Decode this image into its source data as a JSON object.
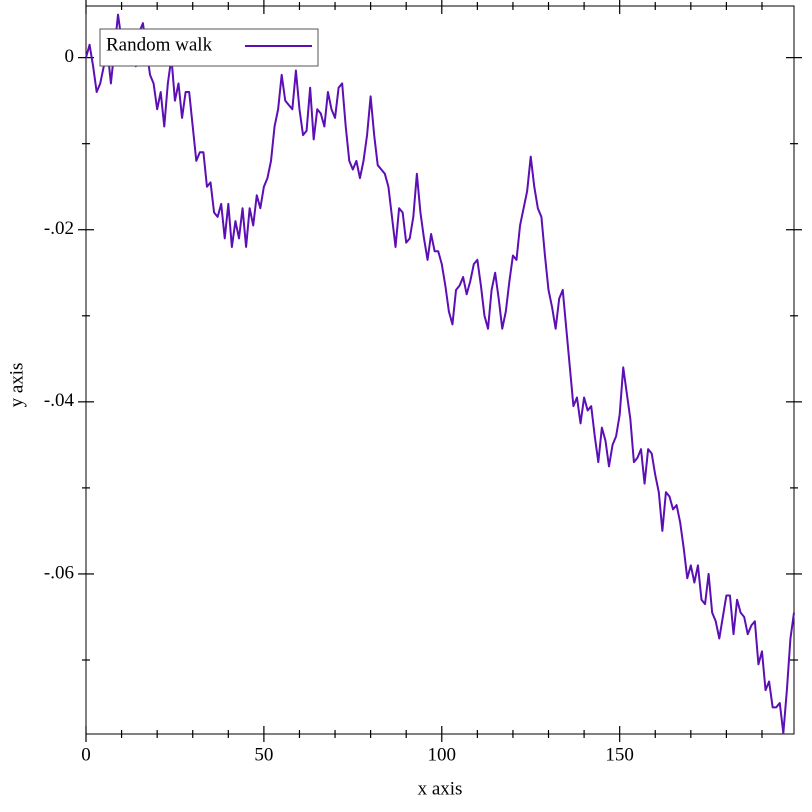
{
  "chart_data": {
    "type": "line",
    "xlabel": "x axis",
    "ylabel": "y axis",
    "x": [
      0,
      1,
      2,
      3,
      4,
      5,
      6,
      7,
      8,
      9,
      10,
      11,
      12,
      13,
      14,
      15,
      16,
      17,
      18,
      19,
      20,
      21,
      22,
      23,
      24,
      25,
      26,
      27,
      28,
      29,
      30,
      31,
      32,
      33,
      34,
      35,
      36,
      37,
      38,
      39,
      40,
      41,
      42,
      43,
      44,
      45,
      46,
      47,
      48,
      49,
      50,
      51,
      52,
      53,
      54,
      55,
      56,
      57,
      58,
      59,
      60,
      61,
      62,
      63,
      64,
      65,
      66,
      67,
      68,
      69,
      70,
      71,
      72,
      73,
      74,
      75,
      76,
      77,
      78,
      79,
      80,
      81,
      82,
      83,
      84,
      85,
      86,
      87,
      88,
      89,
      90,
      91,
      92,
      93,
      94,
      95,
      96,
      97,
      98,
      99,
      100,
      101,
      102,
      103,
      104,
      105,
      106,
      107,
      108,
      109,
      110,
      111,
      112,
      113,
      114,
      115,
      116,
      117,
      118,
      119,
      120,
      121,
      122,
      123,
      124,
      125,
      126,
      127,
      128,
      129,
      130,
      131,
      132,
      133,
      134,
      135,
      136,
      137,
      138,
      139,
      140,
      141,
      142,
      143,
      144,
      145,
      146,
      147,
      148,
      149,
      150,
      151,
      152,
      153,
      154,
      155,
      156,
      157,
      158,
      159,
      160,
      161,
      162,
      163,
      164,
      165,
      166,
      167,
      168,
      169,
      170,
      171,
      172,
      173,
      174,
      175,
      176,
      177,
      178,
      179,
      180,
      181,
      182,
      183,
      184,
      185,
      186,
      187,
      188,
      189,
      190,
      191,
      192,
      193,
      194,
      195,
      196,
      197,
      198,
      199
    ],
    "series": [
      {
        "name": "Random walk",
        "color": "#5c0fb4",
        "values": [
          0,
          0.0015,
          -0.001,
          -0.004,
          -0.003,
          -0.001,
          0.001,
          -0.003,
          0.001,
          0.005,
          0.002,
          0.001,
          0.003,
          0.001,
          -0.001,
          0.003,
          0.004,
          0.001,
          -0.002,
          -0.003,
          -0.006,
          -0.004,
          -0.008,
          -0.003,
          0.0,
          -0.005,
          -0.003,
          -0.007,
          -0.004,
          -0.004,
          -0.008,
          -0.012,
          -0.011,
          -0.011,
          -0.015,
          -0.0145,
          -0.018,
          -0.0185,
          -0.017,
          -0.021,
          -0.017,
          -0.022,
          -0.019,
          -0.021,
          -0.0175,
          -0.022,
          -0.0175,
          -0.0195,
          -0.016,
          -0.0175,
          -0.015,
          -0.014,
          -0.012,
          -0.008,
          -0.006,
          -0.002,
          -0.005,
          -0.0055,
          -0.006,
          -0.0015,
          -0.006,
          -0.009,
          -0.0085,
          -0.0035,
          -0.0095,
          -0.006,
          -0.0065,
          -0.008,
          -0.004,
          -0.006,
          -0.007,
          -0.0035,
          -0.003,
          -0.008,
          -0.012,
          -0.013,
          -0.012,
          -0.014,
          -0.012,
          -0.009,
          -0.0045,
          -0.009,
          -0.0125,
          -0.013,
          -0.0135,
          -0.015,
          -0.0185,
          -0.022,
          -0.0175,
          -0.018,
          -0.0215,
          -0.021,
          -0.0185,
          -0.0135,
          -0.018,
          -0.021,
          -0.0235,
          -0.0205,
          -0.0225,
          -0.0225,
          -0.024,
          -0.0265,
          -0.0295,
          -0.031,
          -0.027,
          -0.0265,
          -0.0255,
          -0.0275,
          -0.026,
          -0.024,
          -0.0235,
          -0.0265,
          -0.03,
          -0.0315,
          -0.027,
          -0.025,
          -0.028,
          -0.0315,
          -0.0295,
          -0.026,
          -0.023,
          -0.0235,
          -0.0195,
          -0.0175,
          -0.0155,
          -0.0115,
          -0.015,
          -0.0175,
          -0.0185,
          -0.023,
          -0.027,
          -0.029,
          -0.0315,
          -0.028,
          -0.027,
          -0.0315,
          -0.036,
          -0.0405,
          -0.0395,
          -0.0425,
          -0.0395,
          -0.041,
          -0.0405,
          -0.044,
          -0.047,
          -0.043,
          -0.0445,
          -0.0475,
          -0.045,
          -0.044,
          -0.0415,
          -0.036,
          -0.039,
          -0.042,
          -0.047,
          -0.0465,
          -0.0455,
          -0.0495,
          -0.0455,
          -0.046,
          -0.0485,
          -0.0505,
          -0.055,
          -0.0505,
          -0.051,
          -0.0525,
          -0.052,
          -0.054,
          -0.057,
          -0.0605,
          -0.059,
          -0.061,
          -0.059,
          -0.063,
          -0.0635,
          -0.06,
          -0.0645,
          -0.0655,
          -0.0675,
          -0.065,
          -0.0625,
          -0.0625,
          -0.067,
          -0.063,
          -0.0645,
          -0.065,
          -0.067,
          -0.066,
          -0.0655,
          -0.0705,
          -0.069,
          -0.0735,
          -0.0725,
          -0.0755,
          -0.0755,
          -0.075,
          -0.0785,
          -0.0735,
          -0.0675,
          -0.0645
        ]
      }
    ],
    "xlim": [
      0,
      199
    ],
    "ylim": [
      -0.0786,
      0.006
    ],
    "xticks": [
      0,
      50,
      100,
      150
    ],
    "yticks": [
      0,
      {
        "value": -0.02,
        "label": "-.02"
      },
      {
        "value": -0.04,
        "label": "-.04"
      },
      {
        "value": -0.06,
        "label": "-.06"
      }
    ],
    "xminorticks": [
      10,
      20,
      30,
      40,
      60,
      70,
      80,
      90,
      110,
      120,
      130,
      140,
      160,
      170,
      180,
      190
    ],
    "yminorticks": [
      -0.01,
      -0.03,
      -0.05,
      -0.07
    ],
    "legend": "top-left"
  }
}
